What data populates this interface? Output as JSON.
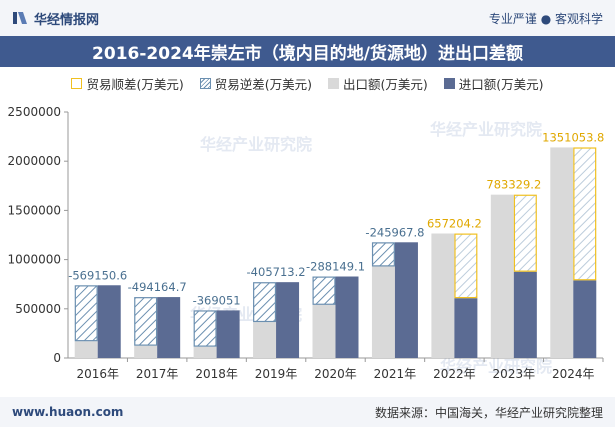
{
  "header": {
    "brand": "华经情报网",
    "tagline": "专业严谨 ● 客观科学"
  },
  "footer": {
    "url": "www.huaon.com",
    "source": "数据来源：中国海关，华经产业研究院整理"
  },
  "watermark": "华经产业研究院",
  "chart_data": {
    "type": "bar",
    "title": "2016-2024年崇左市（境内目的地/货源地）进出口差额",
    "categories": [
      "2016年",
      "2017年",
      "2018年",
      "2019年",
      "2020年",
      "2021年",
      "2022年",
      "2023年",
      "2024年"
    ],
    "legend": [
      "贸易顺差(万美元)",
      "贸易逆差(万美元)",
      "出口额(万美元)",
      "进口额(万美元)"
    ],
    "legend_position": "top",
    "series": [
      {
        "name": "出口额(万美元)",
        "values": [
          170000,
          125000,
          115000,
          365000,
          540000,
          930000,
          1265000,
          1660000,
          2140000
        ]
      },
      {
        "name": "进口额(万美元)",
        "values": [
          739150.6,
          619164.7,
          484051,
          770713.2,
          828149.1,
          1175967.8,
          607795.8,
          876670.8,
          788946.2
        ]
      }
    ],
    "balance": [
      -569150.6,
      -494164.7,
      -369051,
      -405713.2,
      -288149.1,
      -245967.8,
      657204.2,
      783329.2,
      1351053.8
    ],
    "balance_labels": [
      "-569150.6",
      "-494164.7",
      "-369051",
      "-405713.2",
      "-288149.1",
      "-245967.8",
      "657204.2",
      "783329.2",
      "1351053.8"
    ],
    "yticks": [
      "0",
      "500000",
      "1000000",
      "1500000",
      "2000000",
      "2500000"
    ],
    "ylim": [
      0,
      2500000
    ],
    "grid": false,
    "colors": {
      "export": "#d9d9d9",
      "import": "#5b6b93",
      "surplus": "#f0c020",
      "deficit": "#6b8fb0",
      "deficit_label": "#4a7090",
      "surplus_label": "#e0a800"
    }
  }
}
